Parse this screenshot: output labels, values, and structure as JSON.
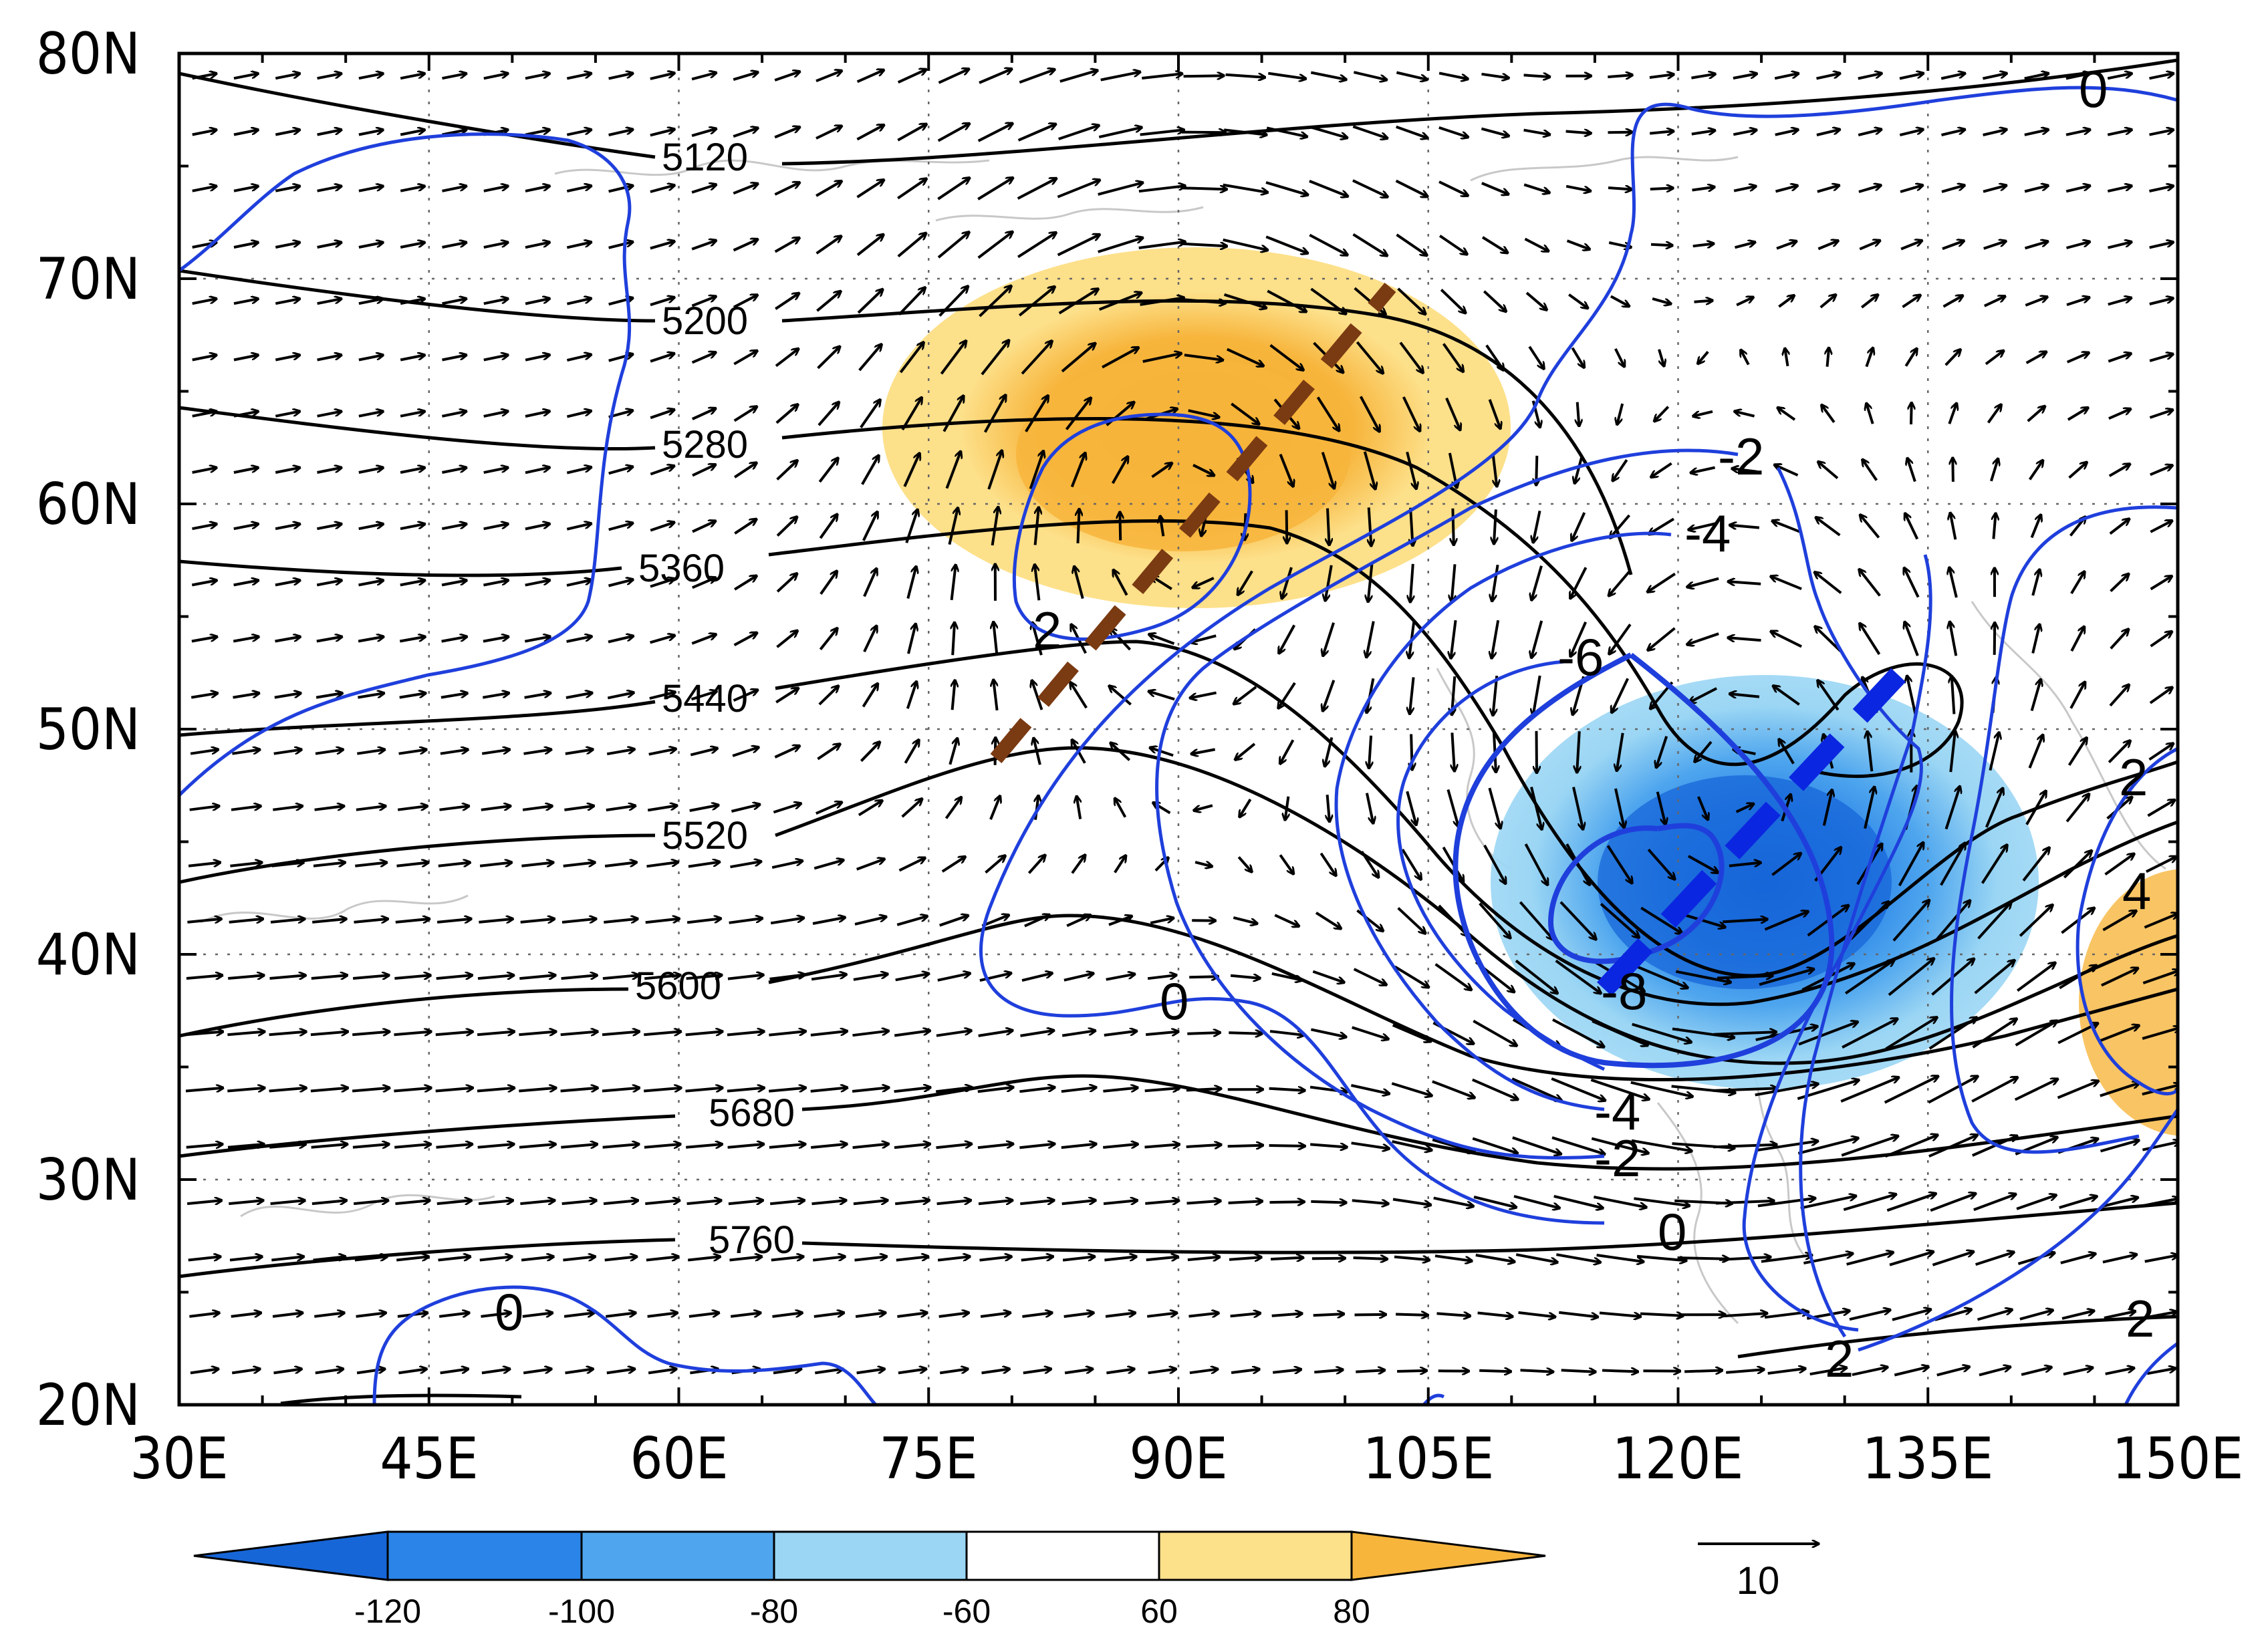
{
  "map": {
    "lon_range": [
      30,
      150
    ],
    "lat_range": [
      20,
      80
    ],
    "x_ticks": [
      "30E",
      "45E",
      "60E",
      "75E",
      "90E",
      "105E",
      "120E",
      "135E",
      "150E"
    ],
    "y_ticks": [
      "20N",
      "30N",
      "40N",
      "50N",
      "60N",
      "70N",
      "80N"
    ],
    "grid": "dotted",
    "colors": {
      "height_contour": "#000000",
      "anomaly_contour": "#1f3fdc",
      "trough_line": "#0b26e0",
      "ridge_line": "#7a3a12",
      "coastline": "#c8c8c8"
    }
  },
  "height_contours": {
    "labels": [
      "5120",
      "5200",
      "5280",
      "5360",
      "5440",
      "5520",
      "5600",
      "5680",
      "5760"
    ]
  },
  "anomaly_contours": {
    "labels": [
      "0",
      "-2",
      "-4",
      "-6",
      "-8",
      "-4",
      "-2",
      "0",
      "2",
      "0",
      "0",
      "2",
      "2",
      "4",
      "2"
    ]
  },
  "colorbar": {
    "labels": [
      "-120",
      "-100",
      "-80",
      "-60",
      "60",
      "80"
    ],
    "colors": [
      "#1766d8",
      "#2b84e8",
      "#4fa6ee",
      "#9bd6f4",
      "#ffffff",
      "#fde08a",
      "#f7b53c"
    ]
  },
  "reference_vector": {
    "label": "10"
  }
}
